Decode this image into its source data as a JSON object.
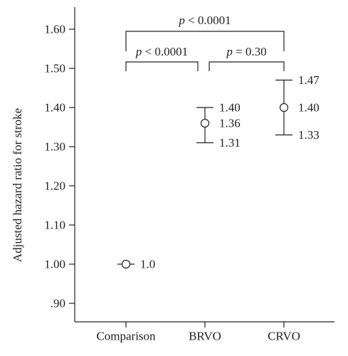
{
  "chart_data": {
    "type": "scatter",
    "ylabel": "Adjusted hazard ratio for stroke",
    "xlabel": "",
    "ylim": [
      0.85,
      1.66
    ],
    "ytick_labels": [
      {
        "value": 0.9,
        "label": ".90"
      },
      {
        "value": 1.0,
        "label": "1.00"
      },
      {
        "value": 1.1,
        "label": "1.10"
      },
      {
        "value": 1.2,
        "label": "1.20"
      },
      {
        "value": 1.3,
        "label": "1.30"
      },
      {
        "value": 1.4,
        "label": "1.40"
      },
      {
        "value": 1.5,
        "label": "1.50"
      },
      {
        "value": 1.6,
        "label": "1.60"
      }
    ],
    "categories": [
      "Comparison",
      "BRVO",
      "CRVO"
    ],
    "points": [
      {
        "category": "Comparison",
        "estimate": 1.0,
        "lower": null,
        "upper": null,
        "estimate_label": "1.0",
        "lower_label": "",
        "upper_label": ""
      },
      {
        "category": "BRVO",
        "estimate": 1.36,
        "lower": 1.31,
        "upper": 1.4,
        "estimate_label": "1.36",
        "lower_label": "1.31",
        "upper_label": "1.40"
      },
      {
        "category": "CRVO",
        "estimate": 1.4,
        "lower": 1.33,
        "upper": 1.47,
        "estimate_label": "1.40",
        "lower_label": "1.33",
        "upper_label": "1.47"
      }
    ],
    "comparisons": [
      {
        "from": "Comparison",
        "to": "CRVO",
        "p_symbol": "p",
        "p_text": " < 0.0001"
      },
      {
        "from": "Comparison",
        "to": "BRVO",
        "p_symbol": "p",
        "p_text": " < 0.0001"
      },
      {
        "from": "BRVO",
        "to": "CRVO",
        "p_symbol": "p",
        "p_text": " = 0.30"
      }
    ]
  }
}
